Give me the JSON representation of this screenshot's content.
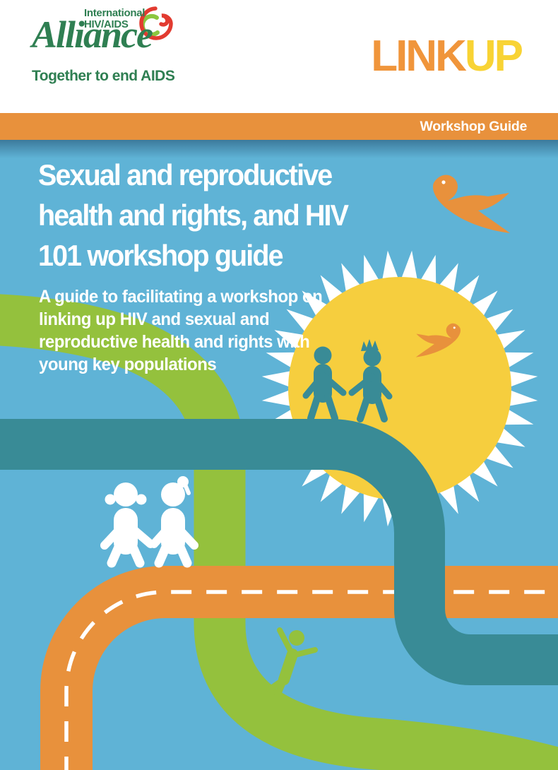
{
  "header": {
    "logo": {
      "line1": "International",
      "line2": "HIV/AIDS",
      "wordmark": "Alliance",
      "tagline": "Together to end AIDS"
    },
    "brand": {
      "part1": "LINK",
      "part2": "UP"
    }
  },
  "banner": {
    "label": "Workshop Guide"
  },
  "cover": {
    "title_lines": [
      "Sexual and reproductive",
      "health and rights, and HIV",
      "101 workshop guide"
    ],
    "subtitle_lines": [
      "A guide to facilitating a workshop on",
      "linking up HIV and sexual and",
      "reproductive health and rights with",
      "young key populations"
    ]
  },
  "colors": {
    "background_blue": "#5FB3D6",
    "road_teal": "#398B96",
    "road_green": "#94C13D",
    "road_orange": "#E8913C",
    "sun_yellow": "#F6CE3E",
    "banner_orange": "#E8913C",
    "brand_orange": "#F0953B",
    "brand_yellow": "#F8D334",
    "logo_green": "#2F7F52",
    "logo_red": "#E23B30",
    "logo_light_green": "#8CC63F",
    "white": "#FFFFFF"
  }
}
